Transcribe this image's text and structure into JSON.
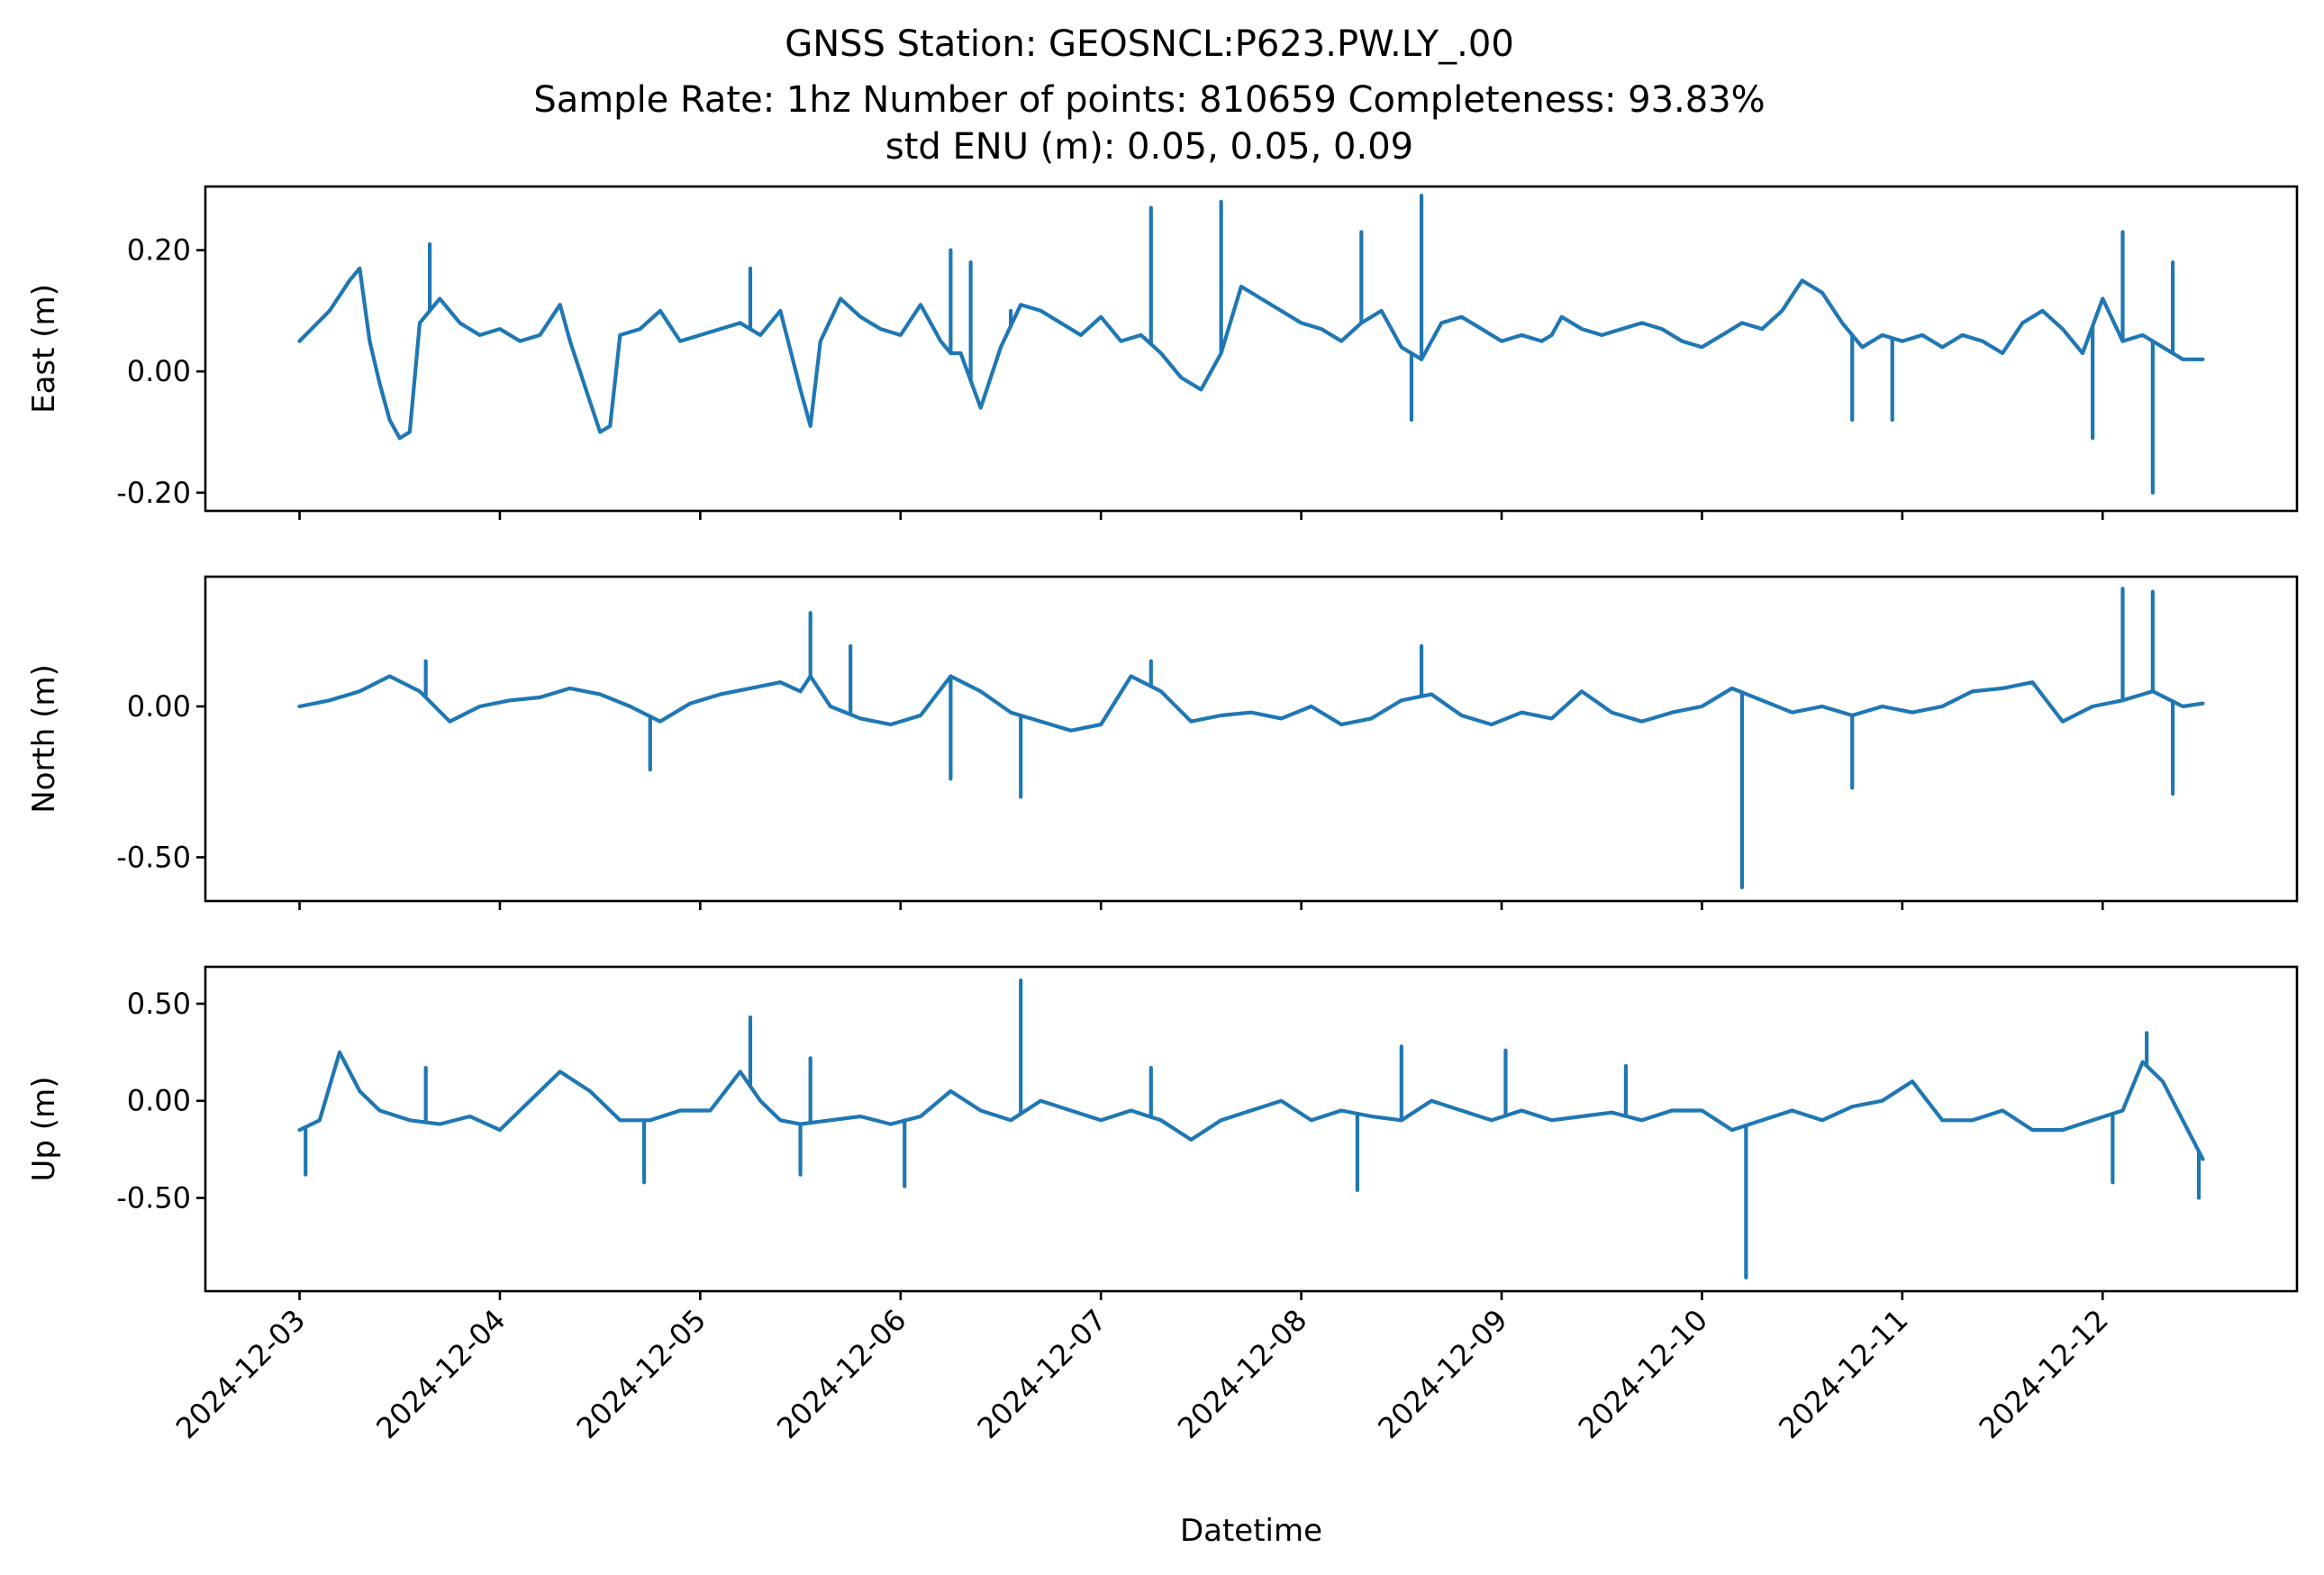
{
  "title_lines": [
    "GNSS Station: GEOSNCL:P623.PW.LY_.00",
    "Sample Rate: 1hz   Number of points: 810659    Completeness:  93.83%",
    "std ENU (m):  0.05, 0.05, 0.09"
  ],
  "colors": {
    "series": "#1f77b4"
  },
  "chart_data": [
    {
      "type": "line",
      "ylabel": "East (m)",
      "xlabel": "",
      "x_range": [
        -0.47,
        9.97
      ],
      "ylim": [
        -0.23,
        0.305
      ],
      "yticks": [
        0.2,
        0.0,
        -0.2
      ],
      "ytick_labels": [
        "0.20",
        "0.00",
        "-0.20"
      ],
      "show_xtick_labels": false,
      "x_days_from": "2024-12-03",
      "x": [
        0.0,
        0.15,
        0.25,
        0.3,
        0.35,
        0.4,
        0.45,
        0.5,
        0.55,
        0.6,
        0.65,
        0.7,
        0.8,
        0.9,
        1.0,
        1.1,
        1.2,
        1.3,
        1.35,
        1.45,
        1.5,
        1.55,
        1.6,
        1.7,
        1.8,
        1.9,
        2.0,
        2.1,
        2.2,
        2.3,
        2.4,
        2.5,
        2.55,
        2.6,
        2.7,
        2.8,
        2.9,
        3.0,
        3.1,
        3.2,
        3.25,
        3.3,
        3.4,
        3.5,
        3.6,
        3.7,
        3.8,
        3.9,
        4.0,
        4.1,
        4.2,
        4.3,
        4.4,
        4.5,
        4.6,
        4.7,
        4.8,
        4.9,
        5.0,
        5.1,
        5.2,
        5.3,
        5.4,
        5.5,
        5.6,
        5.7,
        5.8,
        5.9,
        6.0,
        6.1,
        6.2,
        6.25,
        6.3,
        6.4,
        6.5,
        6.6,
        6.7,
        6.8,
        6.9,
        7.0,
        7.1,
        7.2,
        7.3,
        7.4,
        7.5,
        7.6,
        7.7,
        7.8,
        7.9,
        8.0,
        8.1,
        8.2,
        8.3,
        8.4,
        8.5,
        8.6,
        8.7,
        8.8,
        8.9,
        9.0,
        9.1,
        9.2,
        9.3,
        9.4,
        9.5
      ],
      "y": [
        0.05,
        0.1,
        0.15,
        0.17,
        0.05,
        -0.02,
        -0.08,
        -0.11,
        -0.1,
        0.08,
        0.1,
        0.12,
        0.08,
        0.06,
        0.07,
        0.05,
        0.06,
        0.11,
        0.05,
        -0.05,
        -0.1,
        -0.09,
        0.06,
        0.07,
        0.1,
        0.05,
        0.06,
        0.07,
        0.08,
        0.06,
        0.1,
        -0.03,
        -0.09,
        0.05,
        0.12,
        0.09,
        0.07,
        0.06,
        0.11,
        0.05,
        0.03,
        0.03,
        -0.06,
        0.04,
        0.11,
        0.1,
        0.08,
        0.06,
        0.09,
        0.05,
        0.06,
        0.03,
        -0.01,
        -0.03,
        0.03,
        0.14,
        0.12,
        0.1,
        0.08,
        0.07,
        0.05,
        0.08,
        0.1,
        0.04,
        0.02,
        0.08,
        0.09,
        0.07,
        0.05,
        0.06,
        0.05,
        0.06,
        0.09,
        0.07,
        0.06,
        0.07,
        0.08,
        0.07,
        0.05,
        0.04,
        0.06,
        0.08,
        0.07,
        0.1,
        0.15,
        0.13,
        0.08,
        0.04,
        0.06,
        0.05,
        0.06,
        0.04,
        0.06,
        0.05,
        0.03,
        0.08,
        0.1,
        0.07,
        0.03,
        0.12,
        0.05,
        0.06,
        0.04,
        0.02,
        0.02
      ],
      "spikes": [
        {
          "x": 0.65,
          "y": 0.21
        },
        {
          "x": 2.25,
          "y": 0.17
        },
        {
          "x": 3.25,
          "y": 0.2
        },
        {
          "x": 3.35,
          "y": 0.18
        },
        {
          "x": 3.55,
          "y": 0.1
        },
        {
          "x": 4.25,
          "y": 0.27
        },
        {
          "x": 4.6,
          "y": 0.28
        },
        {
          "x": 5.3,
          "y": 0.23
        },
        {
          "x": 5.6,
          "y": 0.29
        },
        {
          "x": 5.55,
          "y": -0.08
        },
        {
          "x": 7.75,
          "y": -0.08
        },
        {
          "x": 7.95,
          "y": -0.08
        },
        {
          "x": 8.95,
          "y": -0.11
        },
        {
          "x": 9.25,
          "y": -0.2
        },
        {
          "x": 9.35,
          "y": 0.18
        },
        {
          "x": 9.1,
          "y": 0.23
        }
      ]
    },
    {
      "type": "line",
      "ylabel": "North (m)",
      "xlabel": "",
      "x_range": [
        -0.47,
        9.97
      ],
      "ylim": [
        -0.645,
        0.43
      ],
      "yticks": [
        0.0,
        -0.5
      ],
      "ytick_labels": [
        "0.00",
        "-0.50"
      ],
      "show_xtick_labels": false,
      "x_days_from": "2024-12-03",
      "x": [
        0.0,
        0.15,
        0.3,
        0.45,
        0.6,
        0.75,
        0.9,
        1.05,
        1.2,
        1.35,
        1.5,
        1.65,
        1.8,
        1.95,
        2.1,
        2.25,
        2.4,
        2.5,
        2.55,
        2.65,
        2.8,
        2.95,
        3.1,
        3.25,
        3.4,
        3.55,
        3.7,
        3.85,
        4.0,
        4.15,
        4.3,
        4.45,
        4.6,
        4.75,
        4.9,
        5.05,
        5.2,
        5.35,
        5.5,
        5.65,
        5.8,
        5.95,
        6.1,
        6.25,
        6.4,
        6.55,
        6.7,
        6.85,
        7.0,
        7.15,
        7.3,
        7.45,
        7.6,
        7.75,
        7.9,
        8.05,
        8.2,
        8.35,
        8.5,
        8.65,
        8.8,
        8.95,
        9.1,
        9.25,
        9.4,
        9.5
      ],
      "y": [
        0.0,
        0.02,
        0.05,
        0.1,
        0.05,
        -0.05,
        0.0,
        0.02,
        0.03,
        0.06,
        0.04,
        0.0,
        -0.05,
        0.01,
        0.04,
        0.06,
        0.08,
        0.05,
        0.1,
        0.0,
        -0.04,
        -0.06,
        -0.03,
        0.1,
        0.05,
        -0.02,
        -0.05,
        -0.08,
        -0.06,
        0.1,
        0.05,
        -0.05,
        -0.03,
        -0.02,
        -0.04,
        0.0,
        -0.06,
        -0.04,
        0.02,
        0.04,
        -0.03,
        -0.06,
        -0.02,
        -0.04,
        0.05,
        -0.02,
        -0.05,
        -0.02,
        0.0,
        0.06,
        0.02,
        -0.02,
        0.0,
        -0.03,
        0.0,
        -0.02,
        0.0,
        0.05,
        0.06,
        0.08,
        -0.05,
        0.0,
        0.02,
        0.05,
        0.0,
        0.01
      ],
      "spikes": [
        {
          "x": 0.63,
          "y": 0.15
        },
        {
          "x": 1.75,
          "y": -0.21
        },
        {
          "x": 2.55,
          "y": 0.31
        },
        {
          "x": 2.75,
          "y": 0.2
        },
        {
          "x": 3.25,
          "y": -0.24
        },
        {
          "x": 3.6,
          "y": -0.3
        },
        {
          "x": 4.25,
          "y": 0.15
        },
        {
          "x": 5.6,
          "y": 0.2
        },
        {
          "x": 7.2,
          "y": -0.6
        },
        {
          "x": 7.75,
          "y": -0.27
        },
        {
          "x": 9.1,
          "y": 0.39
        },
        {
          "x": 9.25,
          "y": 0.38
        },
        {
          "x": 9.35,
          "y": -0.29
        }
      ]
    },
    {
      "type": "line",
      "ylabel": "Up (m)",
      "xlabel": "Datetime",
      "x_range": [
        -0.47,
        9.97
      ],
      "ylim": [
        -0.98,
        0.69
      ],
      "yticks": [
        0.5,
        0.0,
        -0.5
      ],
      "ytick_labels": [
        "0.50",
        "0.00",
        "-0.50"
      ],
      "show_xtick_labels": true,
      "xticks": [
        0,
        1,
        2,
        3,
        4,
        5,
        6,
        7,
        8,
        9
      ],
      "xtick_labels": [
        "2024-12-03",
        "2024-12-04",
        "2024-12-05",
        "2024-12-06",
        "2024-12-07",
        "2024-12-08",
        "2024-12-09",
        "2024-12-10",
        "2024-12-11",
        "2024-12-12"
      ],
      "x_days_from": "2024-12-03",
      "x": [
        0.0,
        0.1,
        0.2,
        0.3,
        0.4,
        0.55,
        0.7,
        0.85,
        1.0,
        1.15,
        1.3,
        1.45,
        1.6,
        1.75,
        1.9,
        2.05,
        2.2,
        2.3,
        2.4,
        2.5,
        2.65,
        2.8,
        2.95,
        3.1,
        3.25,
        3.4,
        3.55,
        3.7,
        3.85,
        4.0,
        4.15,
        4.3,
        4.45,
        4.6,
        4.75,
        4.9,
        5.05,
        5.2,
        5.35,
        5.5,
        5.65,
        5.8,
        5.95,
        6.1,
        6.25,
        6.4,
        6.55,
        6.7,
        6.85,
        7.0,
        7.15,
        7.3,
        7.45,
        7.6,
        7.75,
        7.9,
        8.05,
        8.2,
        8.35,
        8.5,
        8.65,
        8.8,
        8.95,
        9.1,
        9.2,
        9.3,
        9.4,
        9.5
      ],
      "y": [
        -0.15,
        -0.1,
        0.25,
        0.05,
        -0.05,
        -0.1,
        -0.12,
        -0.08,
        -0.15,
        0.0,
        0.15,
        0.05,
        -0.1,
        -0.1,
        -0.05,
        -0.05,
        0.15,
        0.0,
        -0.1,
        -0.12,
        -0.1,
        -0.08,
        -0.12,
        -0.08,
        0.05,
        -0.05,
        -0.1,
        0.0,
        -0.05,
        -0.1,
        -0.05,
        -0.1,
        -0.2,
        -0.1,
        -0.05,
        0.0,
        -0.1,
        -0.05,
        -0.08,
        -0.1,
        0.0,
        -0.05,
        -0.1,
        -0.05,
        -0.1,
        -0.08,
        -0.06,
        -0.1,
        -0.05,
        -0.05,
        -0.15,
        -0.1,
        -0.05,
        -0.1,
        -0.03,
        0.0,
        0.1,
        -0.1,
        -0.1,
        -0.05,
        -0.15,
        -0.15,
        -0.1,
        -0.05,
        0.2,
        0.1,
        -0.1,
        -0.3
      ],
      "spikes": [
        {
          "x": 0.03,
          "y": -0.38
        },
        {
          "x": 0.63,
          "y": 0.17
        },
        {
          "x": 1.72,
          "y": -0.42
        },
        {
          "x": 2.25,
          "y": 0.43
        },
        {
          "x": 2.55,
          "y": 0.22
        },
        {
          "x": 2.5,
          "y": -0.38
        },
        {
          "x": 3.02,
          "y": -0.44
        },
        {
          "x": 3.6,
          "y": 0.62
        },
        {
          "x": 4.25,
          "y": 0.17
        },
        {
          "x": 5.28,
          "y": -0.46
        },
        {
          "x": 5.5,
          "y": 0.28
        },
        {
          "x": 6.02,
          "y": 0.26
        },
        {
          "x": 6.62,
          "y": 0.18
        },
        {
          "x": 7.22,
          "y": -0.91
        },
        {
          "x": 9.05,
          "y": -0.42
        },
        {
          "x": 9.48,
          "y": -0.5
        },
        {
          "x": 9.22,
          "y": 0.35
        }
      ]
    }
  ]
}
